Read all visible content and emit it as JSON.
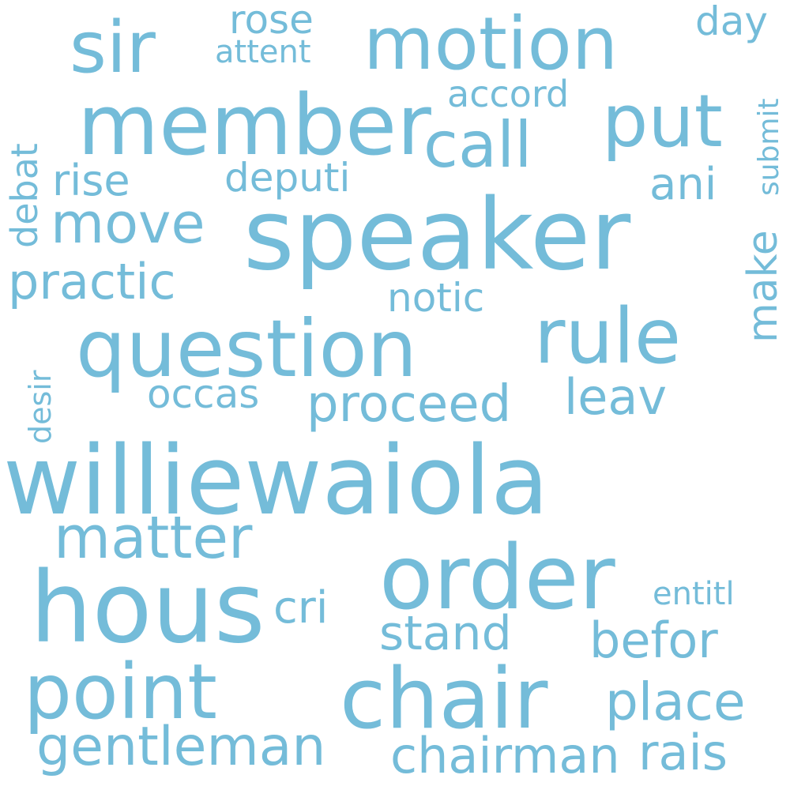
{
  "color": "#74bcd9",
  "background": "#ffffff",
  "words": {
    "williewaiola": "williewaiola",
    "speaker": "speaker",
    "question": "question",
    "hous": "hous",
    "member": "member",
    "order": "order",
    "chair": "chair",
    "point": "point",
    "motion": "motion",
    "rule": "rule",
    "sir": "sir",
    "put": "put",
    "call": "call",
    "matter": "matter",
    "move": "move",
    "gentleman": "gentleman",
    "proceed": "proceed",
    "chairman": "chairman",
    "place": "place",
    "practic": "practic",
    "stand": "stand",
    "befor": "befor",
    "leav": "leav",
    "rais": "rais",
    "ani": "ani",
    "rise": "rise",
    "deputi": "deputi",
    "cri": "cri",
    "rose": "rose",
    "notic": "notic",
    "occas": "occas",
    "accord": "accord",
    "day": "day",
    "attent": "attent",
    "entitl": "entitl",
    "make": "make",
    "debat": "debat",
    "submit": "submit",
    "desir": "desir"
  }
}
